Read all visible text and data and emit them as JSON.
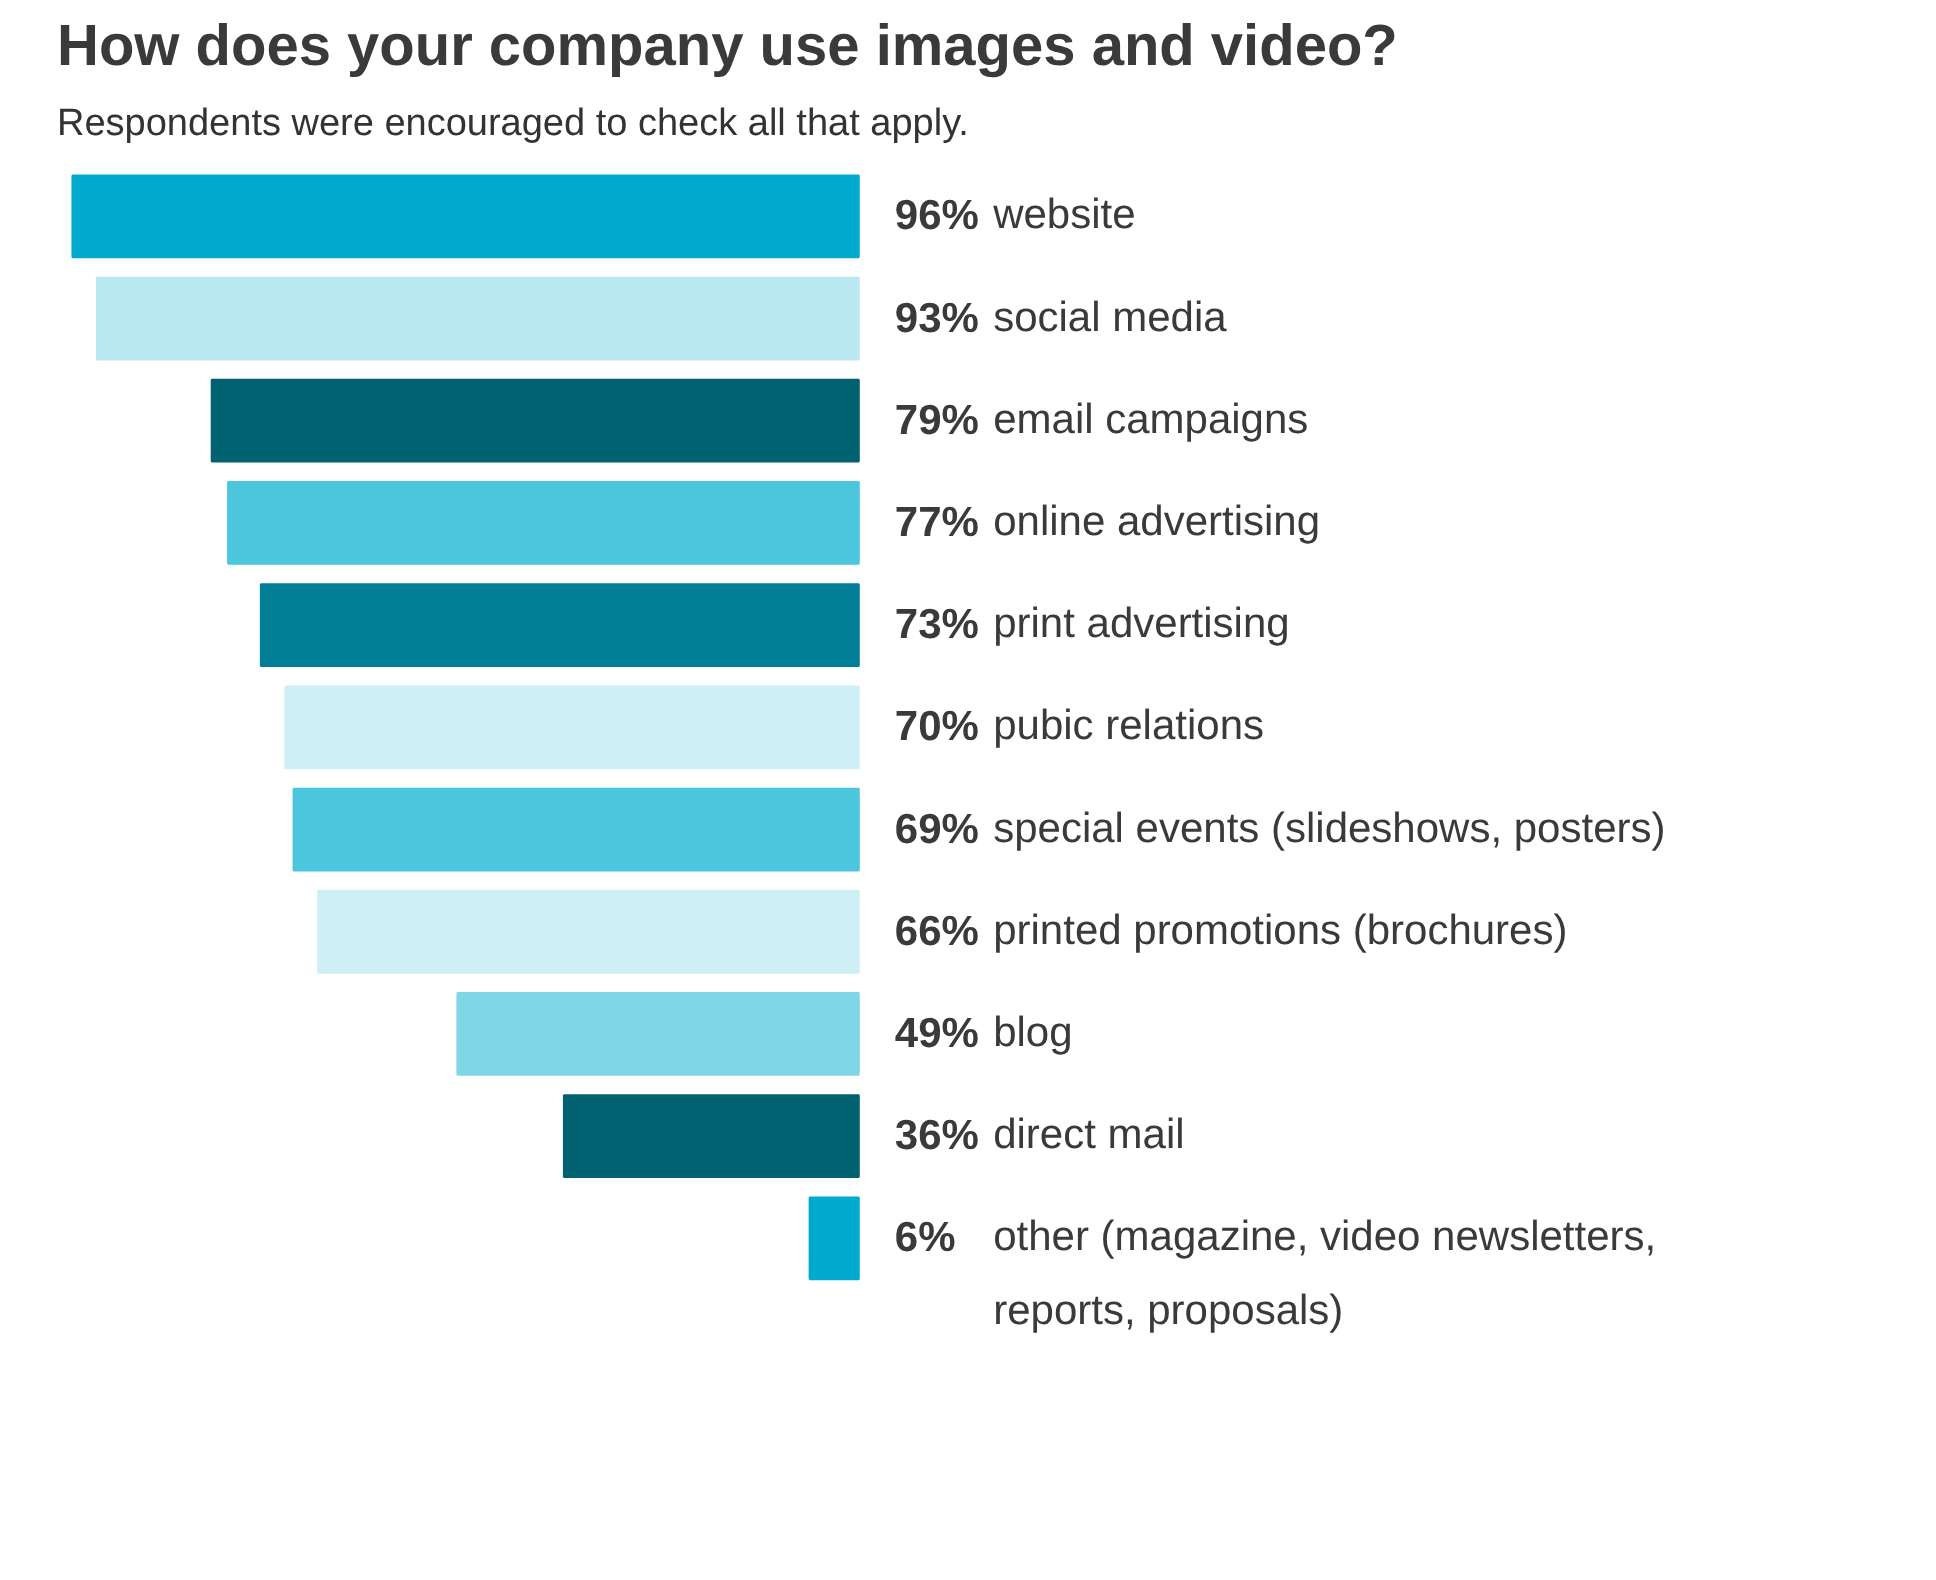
{
  "chart_data": {
    "type": "bar",
    "orientation": "horizontal",
    "title": "How does your company use images and video?",
    "subtitle": "Respondents were encouraged to check all that apply.",
    "categories": [
      "website",
      "social media",
      "email campaigns",
      "online advertising",
      "print advertising",
      "pubic relations",
      "special events (slideshows, posters)",
      "printed promotions (brochures)",
      "blog",
      "direct mail",
      "other (magazine, video newsletters, reports, proposals)"
    ],
    "values": [
      96,
      93,
      79,
      77,
      73,
      70,
      69,
      66,
      49,
      36,
      6
    ],
    "value_labels": [
      "96%",
      "93%",
      "79%",
      "77%",
      "73%",
      "70%",
      "69%",
      "66%",
      "49%",
      "36%",
      "6%"
    ],
    "colors": [
      "#00a9ce",
      "#b9e8f0",
      "#006171",
      "#4cc6dc",
      "#007f96",
      "#cdeff5",
      "#4cc6dc",
      "#cdeff5",
      "#7fd6e6",
      "#006171",
      "#00a9ce"
    ],
    "tick_labels": false,
    "grid": false
  }
}
